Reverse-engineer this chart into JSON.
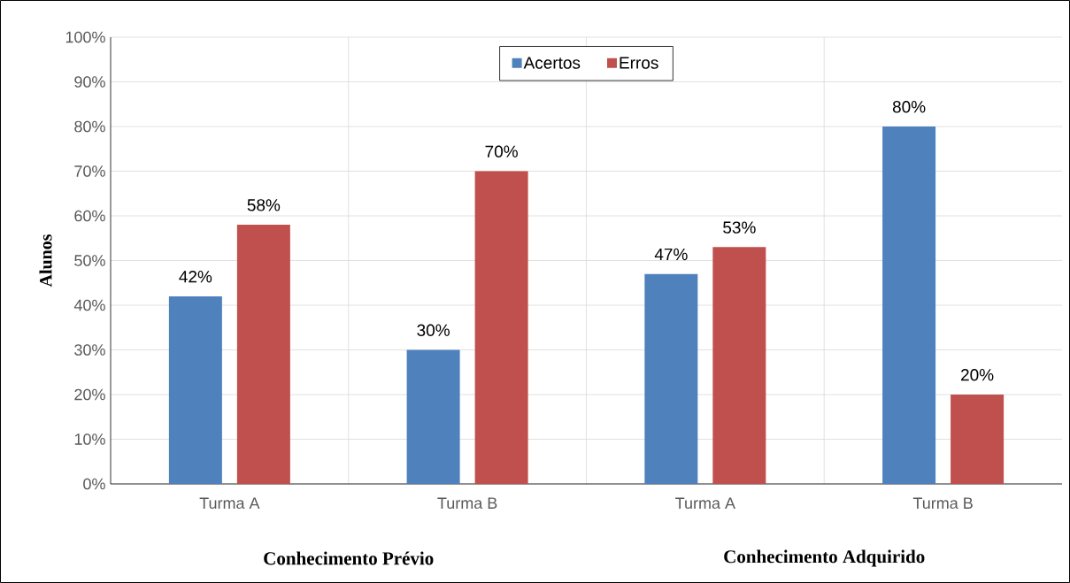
{
  "chart_data": {
    "type": "bar",
    "ylabel": "Alunos",
    "categories": [
      "Turma A",
      "Turma B",
      "Turma A",
      "Turma B"
    ],
    "series": [
      {
        "name": "Acertos",
        "color": "#4f81bd",
        "values": [
          42,
          30,
          47,
          80
        ],
        "value_labels": [
          "42%",
          "30%",
          "47%",
          "80%"
        ]
      },
      {
        "name": "Erros",
        "color": "#c0504d",
        "values": [
          58,
          70,
          53,
          20
        ],
        "value_labels": [
          "58%",
          "70%",
          "53%",
          "20%"
        ]
      }
    ],
    "ylim": [
      0,
      100
    ],
    "yticks": [
      {
        "value": 0,
        "label": "0%"
      },
      {
        "value": 10,
        "label": "10%"
      },
      {
        "value": 20,
        "label": "20%"
      },
      {
        "value": 30,
        "label": "30%"
      },
      {
        "value": 40,
        "label": "40%"
      },
      {
        "value": 50,
        "label": "50%"
      },
      {
        "value": 60,
        "label": "60%"
      },
      {
        "value": 70,
        "label": "70%"
      },
      {
        "value": 80,
        "label": "80%"
      },
      {
        "value": 90,
        "label": "90%"
      },
      {
        "value": 100,
        "label": "100%"
      }
    ],
    "grid": true,
    "legend": "top",
    "annotations": [
      "Conhecimento Prévio",
      "Conhecimento Adquirido"
    ]
  }
}
